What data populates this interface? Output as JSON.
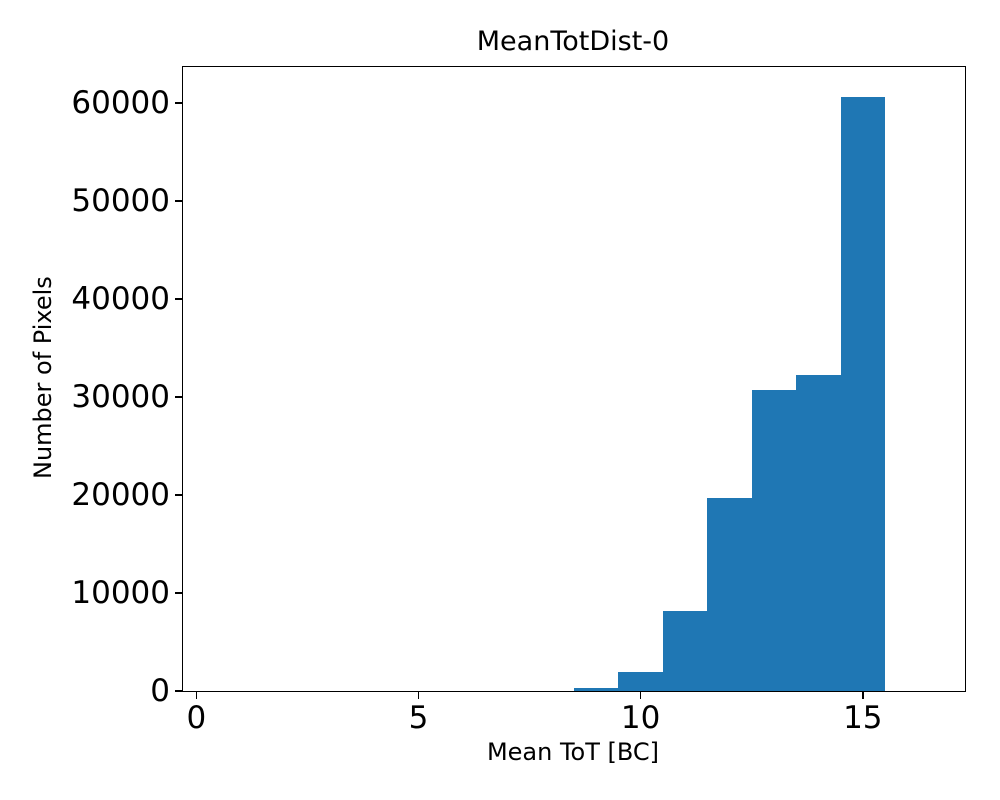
{
  "figure": {
    "background_color": "#ffffff",
    "text_color": "#000000"
  },
  "chart_data": {
    "type": "bar",
    "subtype": "histogram",
    "title": "MeanTotDist-0",
    "xlabel": "Mean ToT [BC]",
    "ylabel": "Number of Pixels",
    "bin_edges": [
      0.5,
      1.5,
      2.5,
      3.5,
      4.5,
      5.5,
      6.5,
      7.5,
      8.5,
      9.5,
      10.5,
      11.5,
      12.5,
      13.5,
      14.5,
      15.5,
      16.5
    ],
    "counts": [
      0,
      0,
      0,
      0,
      0,
      0,
      0,
      0,
      300,
      1900,
      8200,
      19700,
      30700,
      32300,
      60600,
      0
    ],
    "xlim": [
      -0.3,
      17.3
    ],
    "ylim": [
      0,
      63700
    ],
    "xticks": [
      0,
      5,
      10,
      15
    ],
    "yticks": [
      0,
      10000,
      20000,
      30000,
      40000,
      50000,
      60000
    ],
    "bar_color": "#1f77b4",
    "axis_color": "#000000",
    "grid": false,
    "legend_position": "none"
  }
}
